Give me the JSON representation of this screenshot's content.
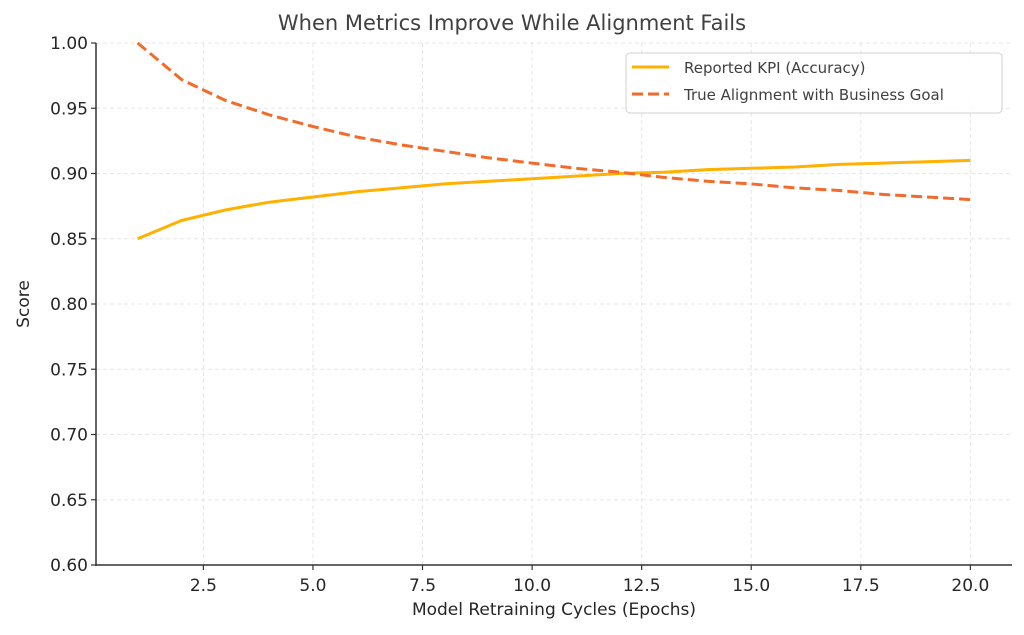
{
  "chart_data": {
    "type": "line",
    "title": "When Metrics Improve While Alignment Fails",
    "xlabel": "Model Retraining Cycles (Epochs)",
    "ylabel": "Score",
    "xlim": [
      0.05,
      20.95
    ],
    "ylim": [
      0.6,
      1.0
    ],
    "x_ticks": [
      2.5,
      5.0,
      7.5,
      10.0,
      12.5,
      15.0,
      17.5,
      20.0
    ],
    "x_tick_labels": [
      "2.5",
      "5.0",
      "7.5",
      "10.0",
      "12.5",
      "15.0",
      "17.5",
      "20.0"
    ],
    "y_ticks": [
      0.6,
      0.65,
      0.7,
      0.75,
      0.8,
      0.85,
      0.9,
      0.95,
      1.0
    ],
    "y_tick_labels": [
      "0.60",
      "0.65",
      "0.70",
      "0.75",
      "0.80",
      "0.85",
      "0.90",
      "0.95",
      "1.00"
    ],
    "grid": true,
    "legend_position": "top-right",
    "x": [
      1,
      2,
      3,
      4,
      5,
      6,
      7,
      8,
      9,
      10,
      11,
      12,
      13,
      14,
      15,
      16,
      17,
      18,
      19,
      20
    ],
    "series": [
      {
        "name": "Reported KPI (Accuracy)",
        "style": "solid",
        "color": "#FFB000",
        "values": [
          0.85,
          0.864,
          0.872,
          0.878,
          0.882,
          0.886,
          0.889,
          0.892,
          0.894,
          0.896,
          0.898,
          0.9,
          0.901,
          0.903,
          0.904,
          0.905,
          0.907,
          0.908,
          0.909,
          0.91
        ]
      },
      {
        "name": "True Alignment with Business Goal",
        "style": "dashed",
        "color": "#F26B2A",
        "values": [
          1.0,
          0.972,
          0.956,
          0.945,
          0.936,
          0.928,
          0.922,
          0.917,
          0.912,
          0.908,
          0.904,
          0.901,
          0.897,
          0.894,
          0.892,
          0.889,
          0.887,
          0.884,
          0.882,
          0.88
        ]
      }
    ]
  }
}
